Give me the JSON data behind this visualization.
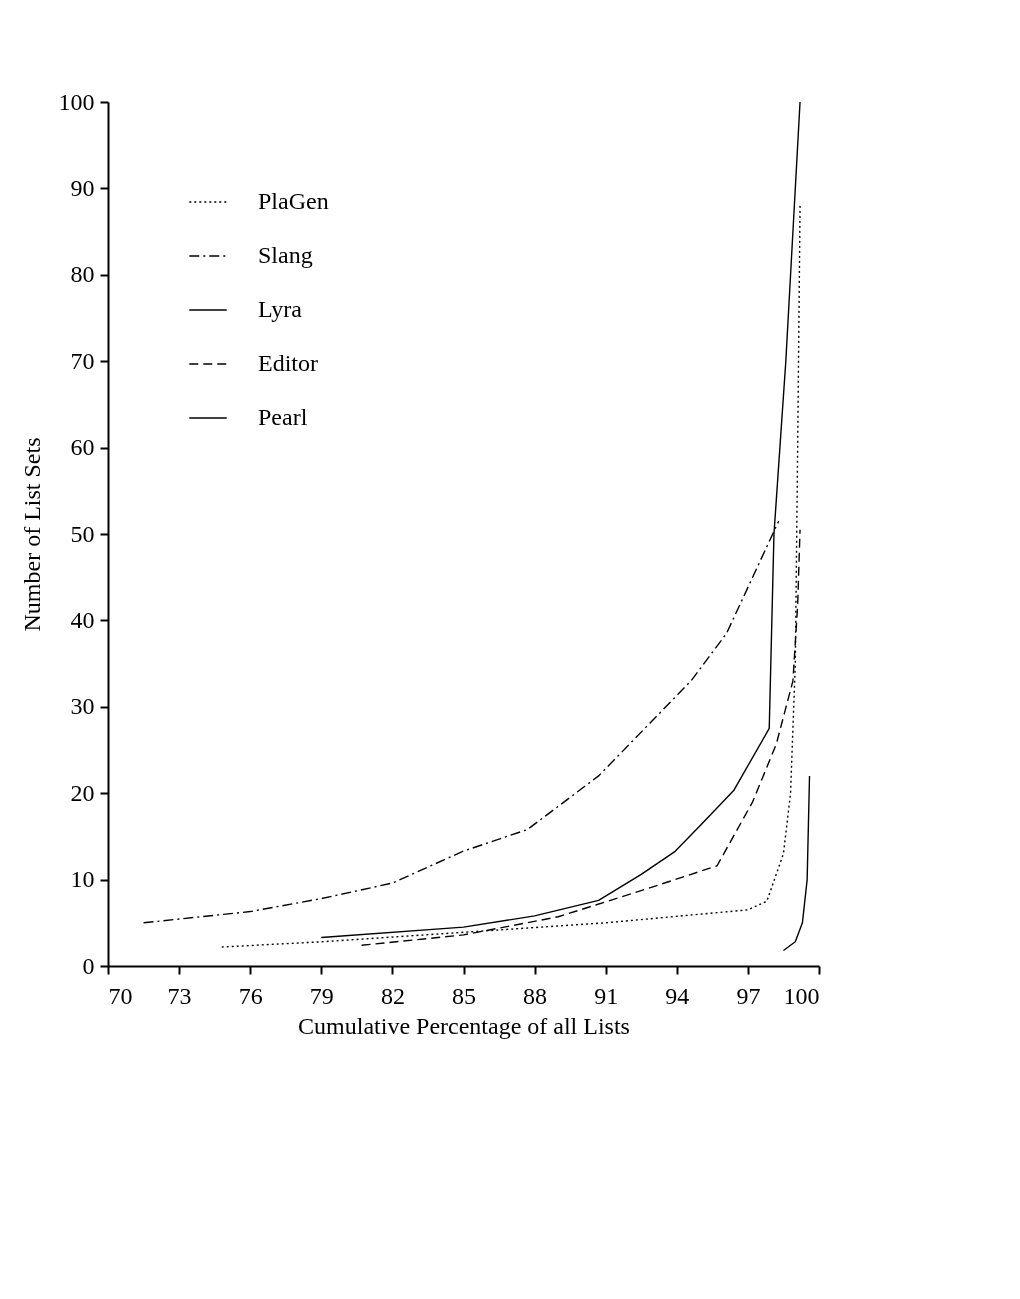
{
  "chart_data": {
    "type": "line",
    "xlabel": "Cumulative Percentage of all Lists",
    "ylabel": "Number of List Sets",
    "xlim": [
      70,
      100
    ],
    "xticks": [
      70,
      73,
      76,
      79,
      82,
      85,
      88,
      91,
      94,
      97,
      100
    ],
    "ylim": [
      0,
      100
    ],
    "yticks": [
      0,
      10,
      20,
      30,
      40,
      50,
      60,
      70,
      80,
      90,
      100
    ],
    "grid": false,
    "legend": "top left",
    "marker": "none",
    "series": [
      {
        "name": "PlaGen",
        "color": "#000000",
        "line_style": "dotted",
        "x": [
          74.8,
          79,
          85,
          91,
          97,
          97.8,
          98.5,
          98.8,
          99,
          99.1,
          99.2
        ],
        "values": [
          2.2,
          2.8,
          3.9,
          5,
          6.5,
          7.5,
          13,
          20,
          35,
          60,
          88
        ]
      },
      {
        "name": "Slang",
        "color": "#000000",
        "line_style": "dashdot",
        "x": [
          71.5,
          76,
          79,
          82,
          85,
          87.7,
          90.7,
          94.6,
          96.1,
          98.3
        ],
        "values": [
          5,
          6.3,
          7.8,
          9.6,
          13.3,
          15.8,
          22,
          33,
          38.5,
          51.5
        ]
      },
      {
        "name": "Lyra",
        "color": "#000000",
        "line_style": "solid",
        "x": [
          98.5,
          99,
          99.3,
          99.5,
          99.6
        ],
        "values": [
          1.8,
          2.8,
          5,
          10,
          22
        ]
      },
      {
        "name": "Editor",
        "color": "#000000",
        "line_style": "dashed",
        "x": [
          80.7,
          85,
          89,
          92.7,
          95.7,
          97.2,
          98.2,
          98.9,
          99.1,
          99.2
        ],
        "values": [
          2.4,
          3.6,
          5.7,
          8.9,
          11.6,
          19,
          25.7,
          33,
          41.8,
          50.5
        ]
      },
      {
        "name": "Pearl",
        "color": "#000000",
        "line_style": "solid",
        "x": [
          79,
          85,
          88,
          90.7,
          92.5,
          93.9,
          95,
          96.4,
          97.9,
          98.1,
          98.6,
          99.2
        ],
        "values": [
          3.3,
          4.5,
          5.8,
          7.6,
          10.6,
          13.2,
          16.3,
          20.3,
          27.5,
          50,
          70,
          100
        ]
      }
    ]
  }
}
